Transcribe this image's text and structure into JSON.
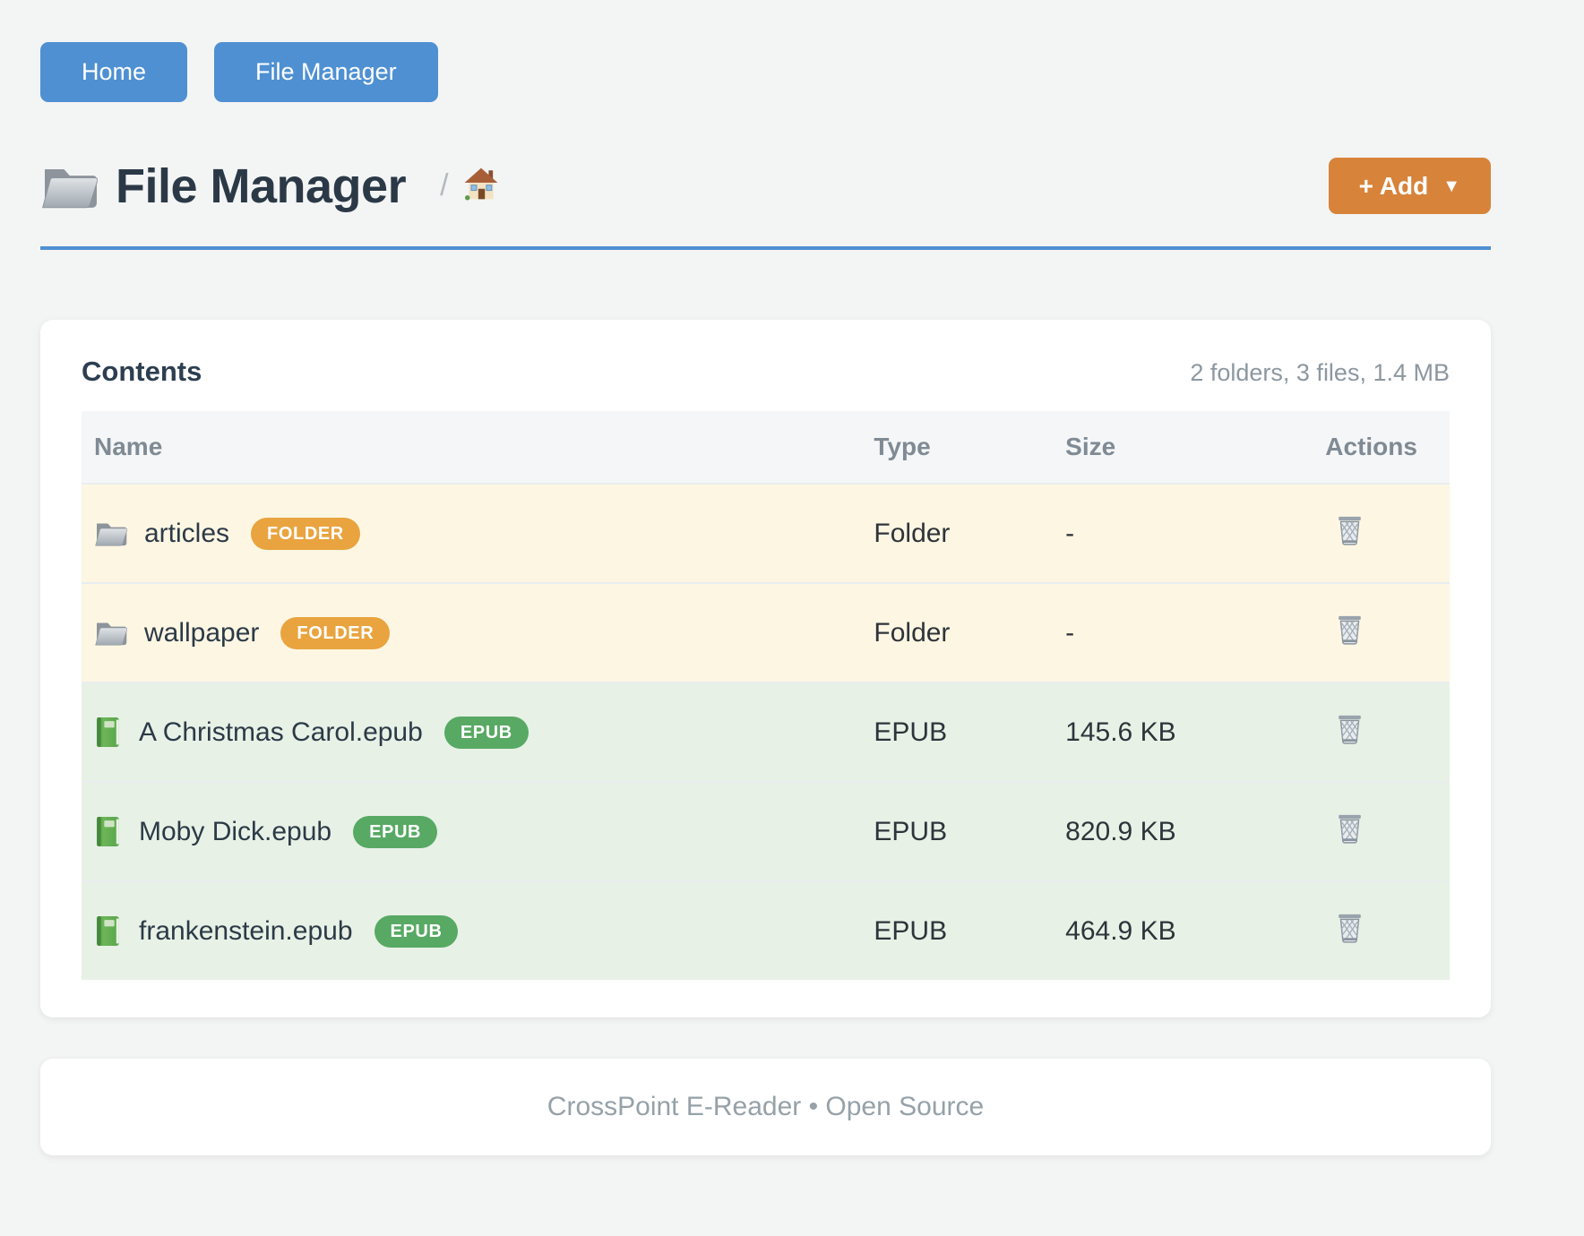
{
  "nav": {
    "home_label": "Home",
    "file_manager_label": "File Manager"
  },
  "header": {
    "title": "File Manager",
    "breadcrumb_separator": "/",
    "add_button_label": "+ Add",
    "add_button_caret": "▼"
  },
  "contents": {
    "title": "Contents",
    "summary": "2 folders, 3 files, 1.4 MB",
    "columns": [
      "Name",
      "Type",
      "Size",
      "Actions"
    ],
    "rows": [
      {
        "name": "articles",
        "badge": "FOLDER",
        "type": "Folder",
        "size": "-",
        "kind": "folder"
      },
      {
        "name": "wallpaper",
        "badge": "FOLDER",
        "type": "Folder",
        "size": "-",
        "kind": "folder"
      },
      {
        "name": "A Christmas Carol.epub",
        "badge": "EPUB",
        "type": "EPUB",
        "size": "145.6 KB",
        "kind": "epub"
      },
      {
        "name": "Moby Dick.epub",
        "badge": "EPUB",
        "type": "EPUB",
        "size": "820.9 KB",
        "kind": "epub"
      },
      {
        "name": "frankenstein.epub",
        "badge": "EPUB",
        "type": "EPUB",
        "size": "464.9 KB",
        "kind": "epub"
      }
    ]
  },
  "footer": {
    "text": "CrossPoint E-Reader • Open Source"
  },
  "icons": {
    "title_icon": "folder-icon",
    "breadcrumb_icon": "house-icon",
    "folder_row_icon": "folder-icon",
    "epub_row_icon": "book-icon",
    "actions_icon": "trash-icon"
  },
  "colors": {
    "accent_blue": "#4e90d2",
    "accent_orange": "#d7833a",
    "badge_folder": "#e9a43f",
    "badge_epub": "#57a963",
    "row_folder_bg": "#fdf6e3",
    "row_epub_bg": "#e7f1e6"
  }
}
